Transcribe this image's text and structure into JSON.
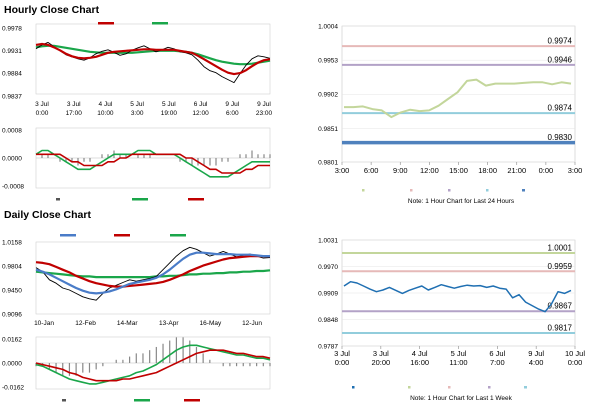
{
  "sections": {
    "hourly_title": "Hourly Close Chart",
    "daily_title": "Daily Close Chart"
  },
  "colors": {
    "ma_short": "#c00000",
    "ma_long": "#1aa64a",
    "ma_mid": "#4a7cc8",
    "price": "#000000",
    "macd": "#1aa64a",
    "signal": "#c00000",
    "divergence": "#888888",
    "close_line_hourly": "#c3d69b",
    "close_line_daily": "#1f6fb2",
    "r2": "#e6b9b8",
    "r1": "#b3a2c7",
    "s1": "#92cddc",
    "s2": "#4f81bd",
    "daily_r2": "#c3d69b",
    "daily_r1": "#e6b9b8",
    "daily_s1": "#b3a2c7",
    "daily_s2": "#92cddc"
  },
  "chart_data": [
    {
      "id": "hourly-price",
      "type": "line",
      "title": "Hourly Close Chart",
      "legend": [
        "20 Hr MA",
        "50 Hrs MA"
      ],
      "yticks": [
        "0.9978",
        "0.9931",
        "0.9884",
        "0.9837"
      ],
      "ylim": [
        0.9837,
        0.9978
      ],
      "xticks": [
        [
          "3 Jul",
          "0:00"
        ],
        [
          "3 Jul",
          "17:00"
        ],
        [
          "4 Jul",
          "10:00"
        ],
        [
          "5 Jul",
          "3:00"
        ],
        [
          "5 Jul",
          "19:00"
        ],
        [
          "6 Jul",
          "12:00"
        ],
        [
          "9 Jul",
          "6:00"
        ],
        [
          "9 Jul",
          "23:00"
        ]
      ],
      "series": [
        {
          "name": "Price",
          "values": [
            0.9928,
            0.9936,
            0.9941,
            0.9932,
            0.9924,
            0.9916,
            0.9912,
            0.9908,
            0.9905,
            0.991,
            0.9918,
            0.9923,
            0.9926,
            0.9921,
            0.9915,
            0.9918,
            0.9925,
            0.993,
            0.9934,
            0.9928,
            0.9922,
            0.9926,
            0.9931,
            0.9928,
            0.9922,
            0.992,
            0.9916,
            0.9905,
            0.9892,
            0.9884,
            0.988,
            0.9872,
            0.9866,
            0.986,
            0.9878,
            0.9895,
            0.9908,
            0.9914,
            0.9912,
            0.9909
          ]
        },
        {
          "name": "20 Hr MA",
          "values": [
            0.9936,
            0.9938,
            0.9936,
            0.9931,
            0.9925,
            0.9918,
            0.9913,
            0.991,
            0.9909,
            0.991,
            0.9912,
            0.9916,
            0.992,
            0.9922,
            0.9923,
            0.9924,
            0.9925,
            0.9926,
            0.9927,
            0.9927,
            0.9926,
            0.9926,
            0.9926,
            0.9926,
            0.9924,
            0.9922,
            0.992,
            0.9914,
            0.9907,
            0.99,
            0.9893,
            0.9886,
            0.988,
            0.9877,
            0.9879,
            0.9885,
            0.9893,
            0.99,
            0.9905,
            0.9907
          ]
        },
        {
          "name": "50 Hrs MA",
          "values": [
            0.9931,
            0.9933,
            0.9934,
            0.9934,
            0.9932,
            0.993,
            0.9928,
            0.9926,
            0.9924,
            0.9922,
            0.9921,
            0.992,
            0.992,
            0.992,
            0.992,
            0.992,
            0.992,
            0.9921,
            0.9922,
            0.9923,
            0.9924,
            0.9924,
            0.9924,
            0.9924,
            0.9923,
            0.9922,
            0.992,
            0.9917,
            0.9913,
            0.9909,
            0.9905,
            0.9902,
            0.99,
            0.9898,
            0.9897,
            0.9897,
            0.9898,
            0.99,
            0.9902,
            0.9904
          ]
        }
      ]
    },
    {
      "id": "hourly-macd",
      "type": "line",
      "legend": [
        "Divergence",
        "MACD",
        "MACD Signal Line"
      ],
      "yticks": [
        "0.0008",
        "0.0000",
        "-0.0008"
      ],
      "ylim": [
        -0.0008,
        0.0008
      ],
      "series": [
        {
          "name": "MACD",
          "values": [
            0.0001,
            0.0002,
            0.0002,
            0.0001,
            0.0,
            -0.0001,
            -0.0002,
            -0.0003,
            -0.0003,
            -0.0003,
            -0.0002,
            -0.0001,
            0.0,
            0.0001,
            0.0001,
            0.0001,
            0.0001,
            0.0002,
            0.0002,
            0.0002,
            0.0001,
            0.0001,
            0.0001,
            0.0001,
            0.0,
            -0.0001,
            -0.0002,
            -0.0003,
            -0.0004,
            -0.0005,
            -0.0005,
            -0.0005,
            -0.0005,
            -0.0004,
            -0.0003,
            -0.0002,
            -0.0001,
            -0.0001,
            -0.0001,
            -0.0001
          ]
        },
        {
          "name": "MACD Signal Line",
          "values": [
            0.0001,
            0.0001,
            0.0001,
            0.0001,
            0.0001,
            0.0,
            -0.0001,
            -0.0001,
            -0.0002,
            -0.0002,
            -0.0002,
            -0.0002,
            -0.0001,
            -0.0001,
            0.0,
            0.0,
            0.0001,
            0.0001,
            0.0001,
            0.0001,
            0.0001,
            0.0001,
            0.0001,
            0.0001,
            0.0001,
            0.0,
            0.0,
            -0.0001,
            -0.0002,
            -0.0003,
            -0.0003,
            -0.0004,
            -0.0004,
            -0.0004,
            -0.0004,
            -0.0003,
            -0.0003,
            -0.0002,
            -0.0002,
            -0.0002
          ]
        }
      ]
    },
    {
      "id": "hourly-levels",
      "type": "line",
      "yticks": [
        "1.0004",
        "0.9953",
        "0.9902",
        "0.9851",
        "0.9801"
      ],
      "ylim": [
        0.9801,
        1.0004
      ],
      "xticks": [
        "3:00",
        "6:00",
        "9:00",
        "12:00",
        "15:00",
        "18:00",
        "21:00",
        "0:00",
        "3:00"
      ],
      "levels": [
        {
          "name": "R2",
          "value": 0.9974,
          "label": "0.9974"
        },
        {
          "name": "R1",
          "value": 0.9946,
          "label": "0.9946"
        },
        {
          "name": "S1",
          "value": 0.9874,
          "label": "0.9874"
        },
        {
          "name": "S2",
          "value": 0.983,
          "label": "0.9830"
        }
      ],
      "legend": [
        "Close",
        "R2",
        "R1",
        "S1",
        "S2"
      ],
      "note": "Note: 1 Hour Chart for Last 24 Hours",
      "series": [
        {
          "name": "Close",
          "values": [
            0.9883,
            0.9883,
            0.9884,
            0.988,
            0.9878,
            0.9868,
            0.9875,
            0.9879,
            0.9877,
            0.9878,
            0.9885,
            0.9895,
            0.9905,
            0.9922,
            0.9924,
            0.9915,
            0.9918,
            0.9918,
            0.9918,
            0.9919,
            0.992,
            0.992,
            0.9917,
            0.992,
            0.9918
          ]
        }
      ]
    },
    {
      "id": "daily-price",
      "type": "line",
      "title": "Daily Close Chart",
      "legend": [
        "20 Day",
        "50 Day",
        "200 Day"
      ],
      "yticks": [
        "1.0158",
        "0.9804",
        "0.9450",
        "0.9096"
      ],
      "ylim": [
        0.9096,
        1.0158
      ],
      "xticks": [
        "10-Jan",
        "12-Feb",
        "14-Mar",
        "13-Apr",
        "16-May",
        "12-Jun"
      ],
      "series": [
        {
          "name": "Price",
          "values": [
            0.978,
            0.972,
            0.96,
            0.955,
            0.948,
            0.945,
            0.94,
            0.935,
            0.932,
            0.93,
            0.94,
            0.948,
            0.952,
            0.956,
            0.96,
            0.958,
            0.96,
            0.962,
            0.965,
            0.975,
            0.985,
            0.995,
            1.003,
            1.008,
            1.005,
            1.0,
            0.995,
            0.998,
            1.002,
            0.998,
            0.994,
            0.996,
            0.998,
            0.995,
            0.992,
            0.993
          ]
        },
        {
          "name": "20 Day",
          "values": [
            0.975,
            0.972,
            0.968,
            0.963,
            0.958,
            0.953,
            0.948,
            0.944,
            0.941,
            0.94,
            0.941,
            0.943,
            0.946,
            0.95,
            0.954,
            0.956,
            0.958,
            0.96,
            0.963,
            0.968,
            0.975,
            0.983,
            0.991,
            0.997,
            1.0,
            1.0,
            0.999,
            0.998,
            0.998,
            0.998,
            0.997,
            0.997,
            0.997,
            0.996,
            0.995,
            0.995
          ]
        },
        {
          "name": "50 Day",
          "values": [
            0.986,
            0.985,
            0.983,
            0.979,
            0.975,
            0.971,
            0.966,
            0.962,
            0.958,
            0.955,
            0.953,
            0.951,
            0.95,
            0.95,
            0.951,
            0.952,
            0.953,
            0.954,
            0.955,
            0.957,
            0.96,
            0.964,
            0.968,
            0.973,
            0.977,
            0.981,
            0.984,
            0.987,
            0.99,
            0.992,
            0.993,
            0.994,
            0.995,
            0.995,
            0.995,
            0.995
          ]
        },
        {
          "name": "200 Day",
          "values": [
            0.972,
            0.971,
            0.97,
            0.969,
            0.968,
            0.967,
            0.966,
            0.965,
            0.965,
            0.964,
            0.964,
            0.964,
            0.964,
            0.964,
            0.964,
            0.964,
            0.964,
            0.964,
            0.965,
            0.965,
            0.966,
            0.966,
            0.967,
            0.968,
            0.968,
            0.969,
            0.969,
            0.97,
            0.97,
            0.971,
            0.971,
            0.972,
            0.972,
            0.973,
            0.973,
            0.974
          ]
        }
      ]
    },
    {
      "id": "daily-macd",
      "type": "line",
      "legend": [
        "Divergence",
        "MACD",
        "MACD Signal Line"
      ],
      "yticks": [
        "0.0162",
        "0.0000",
        "-0.0162"
      ],
      "ylim": [
        -0.0162,
        0.0162
      ],
      "series": [
        {
          "name": "MACD",
          "values": [
            -0.001,
            -0.002,
            -0.004,
            -0.006,
            -0.008,
            -0.01,
            -0.011,
            -0.012,
            -0.013,
            -0.013,
            -0.012,
            -0.011,
            -0.01,
            -0.009,
            -0.008,
            -0.006,
            -0.005,
            -0.003,
            -0.001,
            0.002,
            0.005,
            0.008,
            0.01,
            0.011,
            0.011,
            0.01,
            0.009,
            0.008,
            0.007,
            0.006,
            0.005,
            0.005,
            0.004,
            0.003,
            0.003,
            0.002
          ]
        },
        {
          "name": "MACD Signal Line",
          "values": [
            0.0,
            -0.001,
            -0.002,
            -0.003,
            -0.004,
            -0.006,
            -0.007,
            -0.009,
            -0.01,
            -0.011,
            -0.011,
            -0.011,
            -0.011,
            -0.01,
            -0.01,
            -0.009,
            -0.008,
            -0.007,
            -0.006,
            -0.004,
            -0.002,
            0.0,
            0.002,
            0.004,
            0.006,
            0.007,
            0.008,
            0.008,
            0.008,
            0.007,
            0.006,
            0.006,
            0.005,
            0.004,
            0.004,
            0.003
          ]
        }
      ]
    },
    {
      "id": "daily-levels",
      "type": "line",
      "yticks": [
        "1.0031",
        "0.9970",
        "0.9909",
        "0.9848",
        "0.9787"
      ],
      "ylim": [
        0.9787,
        1.0031
      ],
      "xticks": [
        [
          "3 Jul",
          "0:00"
        ],
        [
          "3 Jul",
          "20:00"
        ],
        [
          "4 Jul",
          "16:00"
        ],
        [
          "5 Jul",
          "11:00"
        ],
        [
          "6 Jul",
          "7:00"
        ],
        [
          "9 Jul",
          "4:00"
        ],
        [
          "10 Jul",
          "0:00"
        ]
      ],
      "levels": [
        {
          "name": "R2",
          "value": 1.0001,
          "label": "1.0001"
        },
        {
          "name": "R1",
          "value": 0.9959,
          "label": "0.9959"
        },
        {
          "name": "S1",
          "value": 0.9867,
          "label": "0.9867"
        },
        {
          "name": "S2",
          "value": 0.9817,
          "label": "0.9817"
        }
      ],
      "legend": [
        "Close",
        "R2",
        "R1",
        "S1",
        "S2"
      ],
      "note": "Note: 1 Hour Chart for Last 1 Week",
      "series": [
        {
          "name": "Close",
          "values": [
            0.9925,
            0.9935,
            0.9932,
            0.9925,
            0.9918,
            0.9912,
            0.9916,
            0.9922,
            0.9915,
            0.9908,
            0.9915,
            0.992,
            0.9925,
            0.9916,
            0.9922,
            0.9928,
            0.9924,
            0.992,
            0.9924,
            0.9927,
            0.9925,
            0.9926,
            0.9922,
            0.9925,
            0.992,
            0.9918,
            0.9898,
            0.9905,
            0.9888,
            0.988,
            0.9872,
            0.9866,
            0.9884,
            0.9912,
            0.9908,
            0.9915
          ]
        }
      ]
    }
  ]
}
